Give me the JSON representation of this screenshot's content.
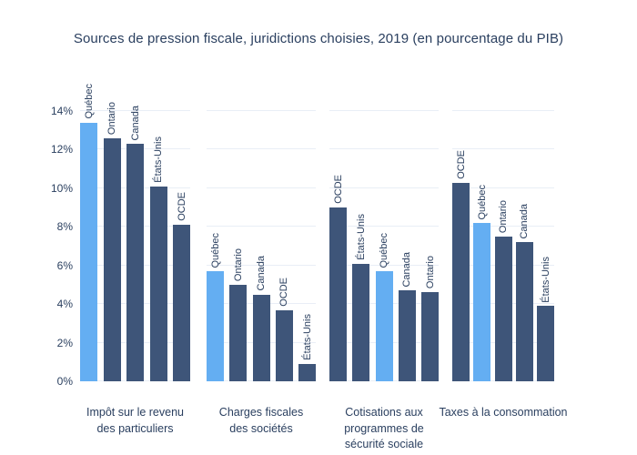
{
  "chart_data": {
    "type": "bar",
    "title": "Sources de pression fiscale, juridictions choisies, 2019 (en pourcentage du PIB)",
    "xlabel": "",
    "ylabel": "",
    "ylim": [
      0,
      14
    ],
    "yticks": [
      0,
      2,
      4,
      6,
      8,
      10,
      12,
      14
    ],
    "ytick_suffix": "%",
    "grid": true,
    "legend_position": "none",
    "colors": {
      "bar_default": "#3e5579",
      "bar_highlight": "#64aef2",
      "text": "#2a3f5f",
      "gridline": "#e9eef6",
      "background": "#ffffff"
    },
    "highlight_category": "Québec",
    "groups": [
      {
        "label": "Impôt sur le revenu des particuliers",
        "label_lines": [
          "Impôt sur le revenu",
          "des particuliers"
        ],
        "bars": [
          {
            "name": "Québec",
            "value": 13.4,
            "highlight": true
          },
          {
            "name": "Ontario",
            "value": 12.6,
            "highlight": false
          },
          {
            "name": "Canada",
            "value": 12.3,
            "highlight": false
          },
          {
            "name": "États-Unis",
            "value": 10.1,
            "highlight": false
          },
          {
            "name": "OCDE",
            "value": 8.1,
            "highlight": false
          }
        ]
      },
      {
        "label": "Charges fiscales des sociétés",
        "label_lines": [
          "Charges fiscales",
          "des sociétés"
        ],
        "bars": [
          {
            "name": "Québec",
            "value": 5.7,
            "highlight": true
          },
          {
            "name": "Ontario",
            "value": 5.0,
            "highlight": false
          },
          {
            "name": "Canada",
            "value": 4.5,
            "highlight": false
          },
          {
            "name": "OCDE",
            "value": 3.7,
            "highlight": false
          },
          {
            "name": "États-Unis",
            "value": 0.9,
            "highlight": false
          }
        ]
      },
      {
        "label": "Cotisations aux programmes de sécurité sociale",
        "label_lines": [
          "Cotisations aux",
          "programmes de",
          "sécurité sociale"
        ],
        "bars": [
          {
            "name": "OCDE",
            "value": 9.0,
            "highlight": false
          },
          {
            "name": "États-Unis",
            "value": 6.1,
            "highlight": false
          },
          {
            "name": "Québec",
            "value": 5.7,
            "highlight": true
          },
          {
            "name": "Canada",
            "value": 4.7,
            "highlight": false
          },
          {
            "name": "Ontario",
            "value": 4.6,
            "highlight": false
          }
        ]
      },
      {
        "label": "Taxes à la consommation",
        "label_lines": [
          "Taxes à la consommation"
        ],
        "bars": [
          {
            "name": "OCDE",
            "value": 10.3,
            "highlight": false
          },
          {
            "name": "Québec",
            "value": 8.2,
            "highlight": true
          },
          {
            "name": "Ontario",
            "value": 7.5,
            "highlight": false
          },
          {
            "name": "Canada",
            "value": 7.2,
            "highlight": false
          },
          {
            "name": "États-Unis",
            "value": 3.9,
            "highlight": false
          }
        ]
      }
    ]
  }
}
